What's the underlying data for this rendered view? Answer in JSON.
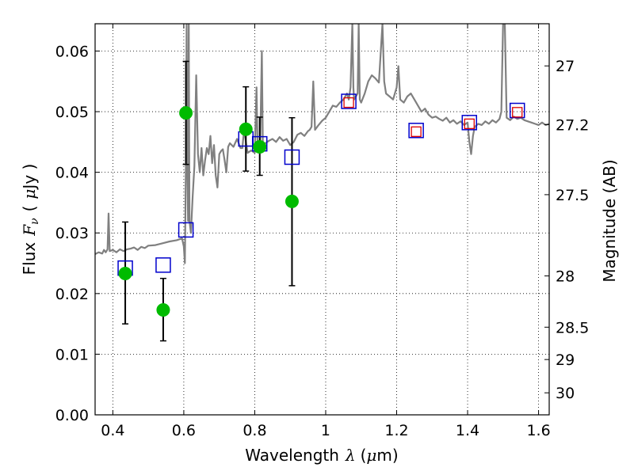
{
  "chart_data": {
    "type": "scatter",
    "title": "",
    "xlabel": {
      "prefix": "Wavelength",
      "symbol": "λ",
      "unit_open": "(",
      "unit_symbol": "μ",
      "unit_rest": "m)"
    },
    "ylabel": {
      "prefix": "Flux",
      "symbol": "F",
      "subscript": "ν",
      "unit_open": "(",
      "unit_symbol": "μ",
      "unit_rest": "Jy )"
    },
    "ylabel_right": "Magnitude (AB)",
    "xlim": [
      0.35,
      1.63
    ],
    "ylim": [
      0.0,
      0.0645
    ],
    "grid": true,
    "x_ticks": [
      {
        "value": 0.4,
        "label": "0.4"
      },
      {
        "value": 0.6,
        "label": "0.6"
      },
      {
        "value": 0.8,
        "label": "0.8"
      },
      {
        "value": 1.0,
        "label": "1"
      },
      {
        "value": 1.2,
        "label": "1.2"
      },
      {
        "value": 1.4,
        "label": "1.4"
      },
      {
        "value": 1.6,
        "label": "1.6"
      }
    ],
    "y_ticks": [
      {
        "value": 0.0,
        "label": "0.00"
      },
      {
        "value": 0.01,
        "label": "0.01"
      },
      {
        "value": 0.02,
        "label": "0.02"
      },
      {
        "value": 0.03,
        "label": "0.03"
      },
      {
        "value": 0.04,
        "label": "0.04"
      },
      {
        "value": 0.05,
        "label": "0.05"
      },
      {
        "value": 0.06,
        "label": "0.06"
      }
    ],
    "right_ticks": [
      {
        "mag": 27,
        "label": "27"
      },
      {
        "mag": 27.2,
        "label": "27.2"
      },
      {
        "mag": 27.5,
        "label": "27.5"
      },
      {
        "mag": 28,
        "label": "28"
      },
      {
        "mag": 28.5,
        "label": "28.5"
      },
      {
        "mag": 29,
        "label": "29"
      },
      {
        "mag": 30,
        "label": "30"
      }
    ],
    "series": [
      {
        "name": "model spectrum",
        "kind": "line",
        "color": "#808080",
        "points": [
          [
            0.35,
            0.0265
          ],
          [
            0.36,
            0.0268
          ],
          [
            0.37,
            0.0266
          ],
          [
            0.375,
            0.0272
          ],
          [
            0.38,
            0.0268
          ],
          [
            0.385,
            0.0273
          ],
          [
            0.388,
            0.0332
          ],
          [
            0.391,
            0.027
          ],
          [
            0.4,
            0.0272
          ],
          [
            0.41,
            0.0268
          ],
          [
            0.42,
            0.0273
          ],
          [
            0.43,
            0.027
          ],
          [
            0.44,
            0.0273
          ],
          [
            0.45,
            0.0274
          ],
          [
            0.46,
            0.0276
          ],
          [
            0.47,
            0.0272
          ],
          [
            0.48,
            0.0277
          ],
          [
            0.49,
            0.0275
          ],
          [
            0.5,
            0.0279
          ],
          [
            0.52,
            0.028
          ],
          [
            0.54,
            0.0283
          ],
          [
            0.56,
            0.0286
          ],
          [
            0.58,
            0.0288
          ],
          [
            0.595,
            0.0291
          ],
          [
            0.6,
            0.0278
          ],
          [
            0.603,
            0.025
          ],
          [
            0.606,
            0.042
          ],
          [
            0.608,
            0.0645
          ],
          [
            0.61,
            0.041
          ],
          [
            0.612,
            0.032
          ],
          [
            0.614,
            0.0645
          ],
          [
            0.616,
            0.032
          ],
          [
            0.62,
            0.03
          ],
          [
            0.625,
            0.036
          ],
          [
            0.63,
            0.041
          ],
          [
            0.635,
            0.056
          ],
          [
            0.64,
            0.043
          ],
          [
            0.645,
            0.04
          ],
          [
            0.65,
            0.044
          ],
          [
            0.655,
            0.0395
          ],
          [
            0.66,
            0.042
          ],
          [
            0.665,
            0.044
          ],
          [
            0.67,
            0.043
          ],
          [
            0.675,
            0.046
          ],
          [
            0.68,
            0.0415
          ],
          [
            0.685,
            0.0445
          ],
          [
            0.69,
            0.0395
          ],
          [
            0.695,
            0.0375
          ],
          [
            0.7,
            0.043
          ],
          [
            0.705,
            0.0435
          ],
          [
            0.71,
            0.0438
          ],
          [
            0.715,
            0.042
          ],
          [
            0.72,
            0.04
          ],
          [
            0.725,
            0.0442
          ],
          [
            0.73,
            0.0448
          ],
          [
            0.74,
            0.0442
          ],
          [
            0.75,
            0.0455
          ],
          [
            0.76,
            0.044
          ],
          [
            0.765,
            0.044
          ],
          [
            0.77,
            0.047
          ],
          [
            0.775,
            0.045
          ],
          [
            0.78,
            0.0432
          ],
          [
            0.79,
            0.0436
          ],
          [
            0.8,
            0.0432
          ],
          [
            0.805,
            0.054
          ],
          [
            0.808,
            0.044
          ],
          [
            0.815,
            0.0438
          ],
          [
            0.82,
            0.06
          ],
          [
            0.823,
            0.044
          ],
          [
            0.83,
            0.0448
          ],
          [
            0.84,
            0.0452
          ],
          [
            0.85,
            0.0455
          ],
          [
            0.86,
            0.045
          ],
          [
            0.87,
            0.0458
          ],
          [
            0.88,
            0.0452
          ],
          [
            0.89,
            0.0455
          ],
          [
            0.9,
            0.0445
          ],
          [
            0.91,
            0.045
          ],
          [
            0.92,
            0.0462
          ],
          [
            0.93,
            0.0465
          ],
          [
            0.94,
            0.046
          ],
          [
            0.95,
            0.0468
          ],
          [
            0.955,
            0.047
          ],
          [
            0.96,
            0.0475
          ],
          [
            0.965,
            0.055
          ],
          [
            0.97,
            0.047
          ],
          [
            0.98,
            0.0478
          ],
          [
            0.99,
            0.0485
          ],
          [
            1.0,
            0.049
          ],
          [
            1.01,
            0.05
          ],
          [
            1.02,
            0.051
          ],
          [
            1.03,
            0.0508
          ],
          [
            1.04,
            0.0515
          ],
          [
            1.05,
            0.052
          ],
          [
            1.055,
            0.0525
          ],
          [
            1.06,
            0.053
          ],
          [
            1.065,
            0.052
          ],
          [
            1.07,
            0.054
          ],
          [
            1.075,
            0.0645
          ],
          [
            1.078,
            0.054
          ],
          [
            1.08,
            0.052
          ],
          [
            1.085,
            0.0525
          ],
          [
            1.09,
            0.053
          ],
          [
            1.093,
            0.0645
          ],
          [
            1.096,
            0.052
          ],
          [
            1.1,
            0.0515
          ],
          [
            1.11,
            0.053
          ],
          [
            1.12,
            0.055
          ],
          [
            1.13,
            0.056
          ],
          [
            1.14,
            0.0555
          ],
          [
            1.15,
            0.0548
          ],
          [
            1.16,
            0.0645
          ],
          [
            1.165,
            0.055
          ],
          [
            1.17,
            0.053
          ],
          [
            1.18,
            0.0525
          ],
          [
            1.19,
            0.052
          ],
          [
            1.2,
            0.054
          ],
          [
            1.205,
            0.0575
          ],
          [
            1.21,
            0.052
          ],
          [
            1.22,
            0.0515
          ],
          [
            1.23,
            0.0525
          ],
          [
            1.24,
            0.053
          ],
          [
            1.25,
            0.052
          ],
          [
            1.26,
            0.051
          ],
          [
            1.27,
            0.05
          ],
          [
            1.28,
            0.0505
          ],
          [
            1.29,
            0.0495
          ],
          [
            1.3,
            0.049
          ],
          [
            1.31,
            0.0492
          ],
          [
            1.32,
            0.0488
          ],
          [
            1.33,
            0.0485
          ],
          [
            1.34,
            0.049
          ],
          [
            1.35,
            0.0482
          ],
          [
            1.36,
            0.0486
          ],
          [
            1.37,
            0.048
          ],
          [
            1.38,
            0.0484
          ],
          [
            1.39,
            0.0478
          ],
          [
            1.4,
            0.0482
          ],
          [
            1.405,
            0.045
          ],
          [
            1.41,
            0.043
          ],
          [
            1.415,
            0.046
          ],
          [
            1.42,
            0.0475
          ],
          [
            1.43,
            0.048
          ],
          [
            1.44,
            0.0478
          ],
          [
            1.45,
            0.0484
          ],
          [
            1.46,
            0.048
          ],
          [
            1.47,
            0.0486
          ],
          [
            1.48,
            0.0482
          ],
          [
            1.49,
            0.0488
          ],
          [
            1.495,
            0.05
          ],
          [
            1.5,
            0.0645
          ],
          [
            1.505,
            0.0645
          ],
          [
            1.51,
            0.049
          ],
          [
            1.52,
            0.0486
          ],
          [
            1.53,
            0.0492
          ],
          [
            1.54,
            0.0488
          ],
          [
            1.55,
            0.049
          ],
          [
            1.56,
            0.0486
          ],
          [
            1.57,
            0.0484
          ],
          [
            1.58,
            0.0482
          ],
          [
            1.59,
            0.048
          ],
          [
            1.6,
            0.0478
          ],
          [
            1.61,
            0.0482
          ],
          [
            1.62,
            0.0478
          ],
          [
            1.63,
            0.048
          ]
        ]
      },
      {
        "name": "observed photometry",
        "kind": "points_with_errors",
        "color": "#00bb00",
        "points": [
          {
            "x": 0.435,
            "y": 0.0233,
            "err_low": 0.015,
            "err_high": 0.0318
          },
          {
            "x": 0.542,
            "y": 0.0173,
            "err_low": 0.0122,
            "err_high": 0.0225
          },
          {
            "x": 0.606,
            "y": 0.0498,
            "err_low": 0.0413,
            "err_high": 0.0583
          },
          {
            "x": 0.775,
            "y": 0.0471,
            "err_low": 0.0402,
            "err_high": 0.0541
          },
          {
            "x": 0.814,
            "y": 0.0442,
            "err_low": 0.0395,
            "err_high": 0.0491
          },
          {
            "x": 0.905,
            "y": 0.0352,
            "err_low": 0.0213,
            "err_high": 0.049
          }
        ]
      },
      {
        "name": "model photometry (blue squares)",
        "kind": "open_squares",
        "color": "#0000cc",
        "points": [
          [
            0.435,
            0.0242
          ],
          [
            0.542,
            0.0247
          ],
          [
            0.606,
            0.0305
          ],
          [
            0.775,
            0.0455
          ],
          [
            0.814,
            0.0447
          ],
          [
            0.905,
            0.0425
          ],
          [
            1.065,
            0.0517
          ],
          [
            1.255,
            0.0469
          ],
          [
            1.405,
            0.0482
          ],
          [
            1.54,
            0.0502
          ]
        ]
      },
      {
        "name": "model photometry (red squares)",
        "kind": "open_squares_small",
        "color": "#dd0000",
        "points": [
          [
            1.065,
            0.0515
          ],
          [
            1.255,
            0.0467
          ],
          [
            1.405,
            0.048
          ],
          [
            1.54,
            0.0499
          ]
        ]
      }
    ]
  }
}
